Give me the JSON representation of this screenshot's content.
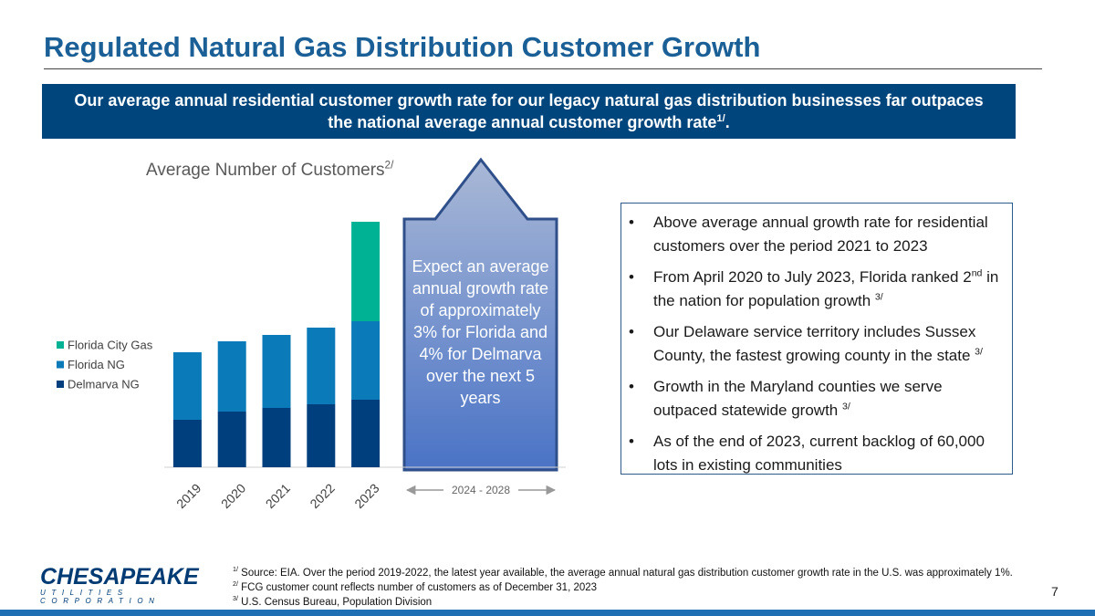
{
  "title": "Regulated Natural Gas Distribution Customer Growth",
  "banner": {
    "text": "Our average annual residential customer growth rate for our legacy natural gas distribution businesses far outpaces the national average annual customer growth rate",
    "sup": "1/",
    "end": "."
  },
  "chart_data": {
    "type": "bar",
    "stacked": true,
    "title": "Average Number of Customers",
    "title_sup": "2/",
    "categories": [
      "2019",
      "2020",
      "2021",
      "2022",
      "2023"
    ],
    "series": [
      {
        "name": "Delmarva NG",
        "color": "#003f7d",
        "values": [
          52,
          61,
          65,
          69,
          74
        ]
      },
      {
        "name": "Florida NG",
        "color": "#0b7ab8",
        "values": [
          74,
          77,
          80,
          84,
          86
        ]
      },
      {
        "name": "Florida City Gas",
        "color": "#00b294",
        "values": [
          null,
          null,
          null,
          null,
          109
        ]
      }
    ],
    "ylim": [
      0,
      280
    ],
    "legend": "left",
    "annotation": "Expect an average annual growth rate of approximately 3% for Florida and 4% for Delmarva over the next 5 years",
    "range_label": "2024 - 2028"
  },
  "bullets": [
    [
      {
        "text": "Above average annual growth rate for residential customers over the period 2021 to 2023"
      }
    ],
    [
      {
        "text": "From April 2020 to July 2023, Florida ranked 2"
      },
      {
        "sup": "nd"
      },
      {
        "text": " in the nation for population growth "
      },
      {
        "sup": "3/"
      }
    ],
    [
      {
        "text": "Our Delaware service territory includes Sussex County, the fastest growing county in the state "
      },
      {
        "sup": "3/"
      }
    ],
    [
      {
        "text": "Growth in the Maryland counties we serve outpaced statewide growth "
      },
      {
        "sup": "3/"
      }
    ],
    [
      {
        "text": "As of the end of 2023, current backlog of 60,000 lots in existing communities"
      }
    ]
  ],
  "footnotes": [
    {
      "mark": "1/",
      "text": " Source: EIA.  Over the period 2019-2022, the latest year available, the average annual natural gas distribution customer growth rate  in the U.S. was approximately 1%."
    },
    {
      "mark": "2/",
      "text": " FCG customer count reflects number of customers as of December 31, 2023"
    },
    {
      "mark": "3/",
      "text": " U.S. Census Bureau, Population Division"
    }
  ],
  "logo": {
    "name": "CHESAPEAKE",
    "sub": "UTILITIES CORPORATION"
  },
  "page_number": 7
}
